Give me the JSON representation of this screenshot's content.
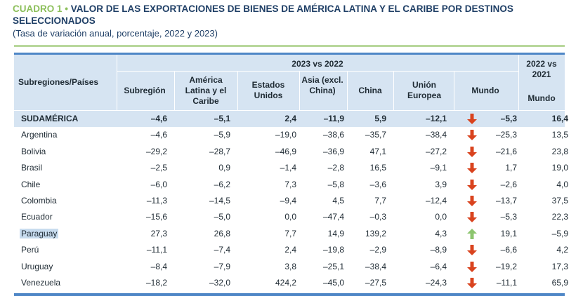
{
  "title": {
    "prefix": "CUADRO 1",
    "separator": " • ",
    "line1": "VALOR DE LAS EXPORTACIONES DE BIENES DE AMÉRICA LATINA Y EL CARIBE POR DESTINOS",
    "line2": "SELECCIONADOS",
    "subtitle": "(Tasa de variación anual, porcentaje, 2022 y 2023)"
  },
  "header": {
    "row_label": "Subregiones/Países",
    "group_2023": "2023 vs 2022",
    "group_2022": "2022 vs 2021",
    "columns": [
      "Subregión",
      "América Latina y el Caribe",
      "Estados Unidos",
      "Asia (excl. China)",
      "China",
      "Unión Europea",
      "Mundo",
      "Mundo"
    ]
  },
  "colors": {
    "down_arrow": "#d9431e",
    "up_arrow": "#8cc56e",
    "header_bg": "#d6e4f2",
    "rule_blue": "#4e86c6",
    "rule_green": "#b9d89c"
  },
  "rows": [
    {
      "name": "SUDAMÉRICA",
      "values": [
        "–4,6",
        "–5,1",
        "2,4",
        "–11,9",
        "5,9",
        "–12,1",
        "–5,3",
        "16,4"
      ],
      "trend": "down-icon"
    },
    {
      "name": "Argentina",
      "values": [
        "–4,6",
        "–5,9",
        "–19,0",
        "–38,6",
        "–35,7",
        "–38,4",
        "–25,3",
        "13,5"
      ],
      "trend": "down-icon"
    },
    {
      "name": "Bolivia",
      "values": [
        "–29,2",
        "–28,7",
        "–46,9",
        "–36,9",
        "47,1",
        "–27,2",
        "–21,6",
        "23,8"
      ],
      "trend": "down-icon"
    },
    {
      "name": "Brasil",
      "values": [
        "–2,5",
        "0,9",
        "–1,4",
        "–2,8",
        "16,5",
        "–9,1",
        "1,7",
        "19,0"
      ],
      "trend": "down-icon"
    },
    {
      "name": "Chile",
      "values": [
        "–6,0",
        "–6,2",
        "7,3",
        "–5,8",
        "–3,6",
        "3,9",
        "–2,6",
        "4,0"
      ],
      "trend": "down-icon"
    },
    {
      "name": "Colombia",
      "values": [
        "–11,3",
        "–14,5",
        "–9,4",
        "4,5",
        "7,7",
        "–12,4",
        "–13,7",
        "37,5"
      ],
      "trend": "down-icon"
    },
    {
      "name": "Ecuador",
      "values": [
        "–15,6",
        "–5,0",
        "0,0",
        "–47,4",
        "–0,3",
        "0,0",
        "–5,3",
        "22,3"
      ],
      "trend": "down-icon"
    },
    {
      "name": "Paraguay",
      "values": [
        "27,3",
        "26,8",
        "7,7",
        "14,9",
        "139,2",
        "4,3",
        "19,1",
        "–5,9"
      ],
      "trend": "up-icon"
    },
    {
      "name": "Perú",
      "values": [
        "–11,1",
        "–7,4",
        "2,4",
        "–19,8",
        "–2,9",
        "–8,9",
        "–6,6",
        "4,2"
      ],
      "trend": "down-icon"
    },
    {
      "name": "Uruguay",
      "values": [
        "–8,4",
        "–7,9",
        "3,8",
        "–25,1",
        "–38,4",
        "–6,4",
        "–19,2",
        "17,3"
      ],
      "trend": "down-icon"
    },
    {
      "name": "Venezuela",
      "values": [
        "–18,2",
        "–32,0",
        "424,2",
        "–45,0",
        "–27,5",
        "–24,3",
        "–11,1",
        "65,9"
      ],
      "trend": "down-icon"
    }
  ]
}
